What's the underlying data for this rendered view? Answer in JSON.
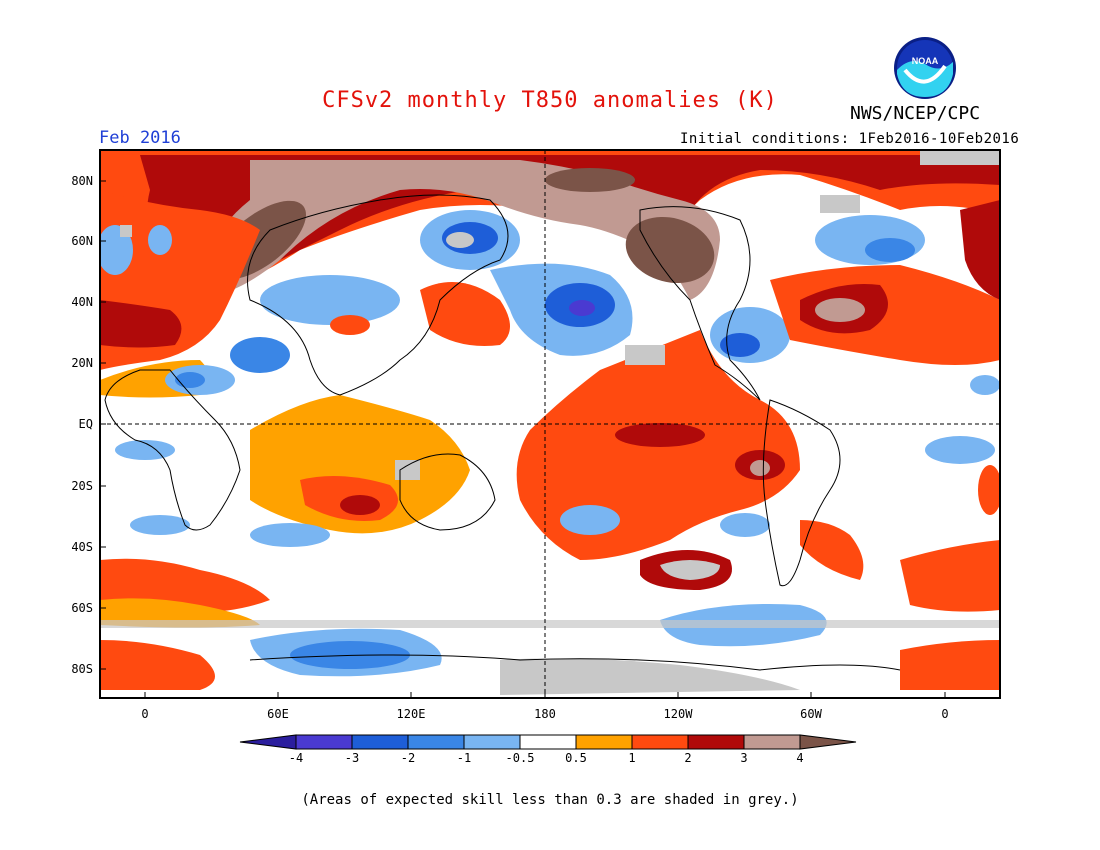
{
  "title": "CFSv2 monthly T850 anomalies (K)",
  "agency": "NWS/NCEP/CPC",
  "logo_text": "NOAA",
  "period": "Feb 2016",
  "initial_conditions": "Initial conditions: 1Feb2016-10Feb2016",
  "lat_labels": [
    "80N",
    "60N",
    "40N",
    "20N",
    "EQ",
    "20S",
    "40S",
    "60S",
    "80S"
  ],
  "lon_labels": [
    "0",
    "60E",
    "120E",
    "180",
    "120W",
    "60W",
    "0"
  ],
  "colorbar": {
    "ticks": [
      "-4",
      "-3",
      "-2",
      "-1",
      "-0.5",
      "0.5",
      "1",
      "2",
      "3",
      "4"
    ],
    "colors": [
      "#2b1e9e",
      "#4a3ad1",
      "#1e5ed8",
      "#3a86e6",
      "#79b5f2",
      "#ffffff",
      "#ffa200",
      "#ff4a10",
      "#b00a0a",
      "#c19a92",
      "#7b5448"
    ]
  },
  "note": "(Areas of expected skill less than 0.3 are shaded in grey.)",
  "colors": {
    "title": "#e3120b",
    "period": "#1f3fd6",
    "skill_mask": "#c8c8c8"
  }
}
